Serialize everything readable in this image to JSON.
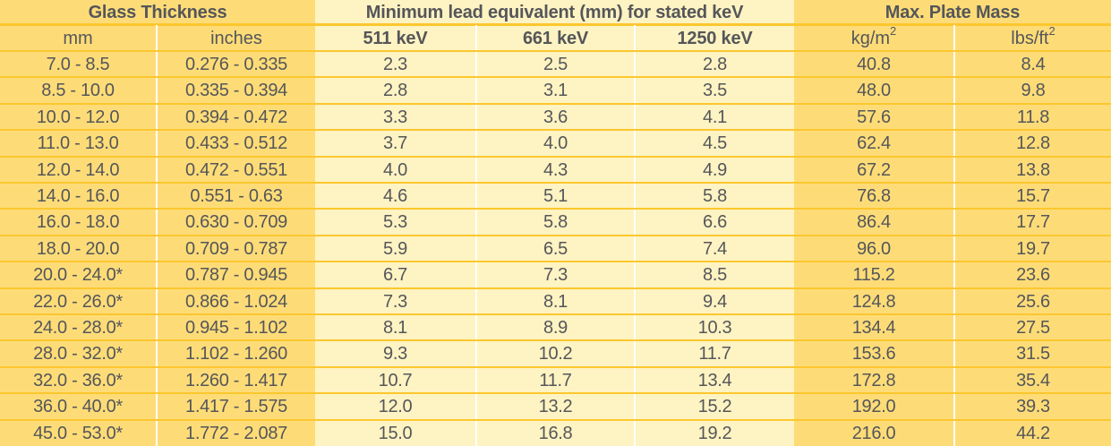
{
  "table": {
    "group_headers": {
      "glass_thickness": "Glass Thickness",
      "lead_equivalent": "Minimum lead equivalent (mm) for stated keV",
      "plate_mass": "Max. Plate Mass"
    },
    "sub_headers": {
      "mm": "mm",
      "inches": "inches",
      "kev_511": "511 keV",
      "kev_661": "661 keV",
      "kev_1250": "1250 keV",
      "kg_unit": "kg/m",
      "kg_exp": "2",
      "lbs_unit": "lbs/ft",
      "lbs_exp": "2"
    },
    "rows": [
      {
        "mm": "7.0 - 8.5",
        "inches": "0.276 - 0.335",
        "kev511": "2.3",
        "kev661": "2.5",
        "kev1250": "2.8",
        "kgm2": "40.8",
        "lbsft2": "8.4"
      },
      {
        "mm": "8.5 - 10.0",
        "inches": "0.335 - 0.394",
        "kev511": "2.8",
        "kev661": "3.1",
        "kev1250": "3.5",
        "kgm2": "48.0",
        "lbsft2": "9.8"
      },
      {
        "mm": "10.0 - 12.0",
        "inches": "0.394 - 0.472",
        "kev511": "3.3",
        "kev661": "3.6",
        "kev1250": "4.1",
        "kgm2": "57.6",
        "lbsft2": "11.8"
      },
      {
        "mm": "11.0 - 13.0",
        "inches": "0.433 - 0.512",
        "kev511": "3.7",
        "kev661": "4.0",
        "kev1250": "4.5",
        "kgm2": "62.4",
        "lbsft2": "12.8"
      },
      {
        "mm": "12.0 - 14.0",
        "inches": "0.472 - 0.551",
        "kev511": "4.0",
        "kev661": "4.3",
        "kev1250": "4.9",
        "kgm2": "67.2",
        "lbsft2": "13.8"
      },
      {
        "mm": "14.0 - 16.0",
        "inches": "0.551 - 0.63",
        "kev511": "4.6",
        "kev661": "5.1",
        "kev1250": "5.8",
        "kgm2": "76.8",
        "lbsft2": "15.7"
      },
      {
        "mm": "16.0 - 18.0",
        "inches": "0.630 - 0.709",
        "kev511": "5.3",
        "kev661": "5.8",
        "kev1250": "6.6",
        "kgm2": "86.4",
        "lbsft2": "17.7"
      },
      {
        "mm": "18.0 - 20.0",
        "inches": "0.709 - 0.787",
        "kev511": "5.9",
        "kev661": "6.5",
        "kev1250": "7.4",
        "kgm2": "96.0",
        "lbsft2": "19.7"
      },
      {
        "mm": "20.0 - 24.0*",
        "inches": "0.787 - 0.945",
        "kev511": "6.7",
        "kev661": "7.3",
        "kev1250": "8.5",
        "kgm2": "115.2",
        "lbsft2": "23.6"
      },
      {
        "mm": "22.0 - 26.0*",
        "inches": "0.866 - 1.024",
        "kev511": "7.3",
        "kev661": "8.1",
        "kev1250": "9.4",
        "kgm2": "124.8",
        "lbsft2": "25.6"
      },
      {
        "mm": "24.0 - 28.0*",
        "inches": "0.945 - 1.102",
        "kev511": "8.1",
        "kev661": "8.9",
        "kev1250": "10.3",
        "kgm2": "134.4",
        "lbsft2": "27.5"
      },
      {
        "mm": "28.0 - 32.0*",
        "inches": "1.102 - 1.260",
        "kev511": "9.3",
        "kev661": "10.2",
        "kev1250": "11.7",
        "kgm2": "153.6",
        "lbsft2": "31.5"
      },
      {
        "mm": "32.0 - 36.0*",
        "inches": "1.260 - 1.417",
        "kev511": "10.7",
        "kev661": "11.7",
        "kev1250": "13.4",
        "kgm2": "172.8",
        "lbsft2": "35.4"
      },
      {
        "mm": "36.0 - 40.0*",
        "inches": "1.417 - 1.575",
        "kev511": "12.0",
        "kev661": "13.2",
        "kev1250": "15.2",
        "kgm2": "192.0",
        "lbsft2": "39.3"
      },
      {
        "mm": "45.0 - 53.0*",
        "inches": "1.772 - 2.087",
        "kev511": "15.0",
        "kev661": "16.8",
        "kev1250": "19.2",
        "kgm2": "216.0",
        "lbsft2": "44.2"
      }
    ]
  },
  "colors": {
    "outer_column_bg": "#fddc78",
    "middle_column_bg": "#fef3c2",
    "row_divider": "#fcc72e",
    "text": "#55565a"
  }
}
